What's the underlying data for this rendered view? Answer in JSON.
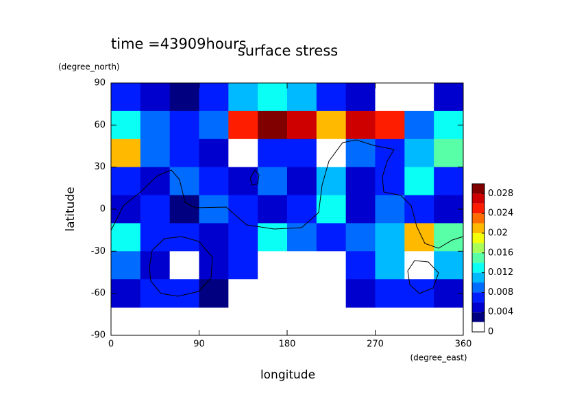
{
  "chart_data": {
    "type": "contour",
    "title": "surface stress",
    "subtitle": "time =43909hours",
    "x_label": "longitude",
    "x_unit": "(degree_east)",
    "y_label": "latitude",
    "y_unit": "(degree_north)",
    "x": [
      15,
      45,
      75,
      105,
      135,
      165,
      195,
      225,
      255,
      285,
      315,
      345
    ],
    "y": [
      80,
      60,
      40,
      20,
      0,
      -20,
      -40,
      -60
    ],
    "z": [
      [
        0.006,
        0.004,
        0.003,
        0.006,
        0.01,
        0.012,
        0.01,
        0.006,
        0.004,
        0.001,
        0.001,
        0.004
      ],
      [
        0.012,
        0.008,
        0.006,
        0.008,
        0.024,
        0.028,
        0.026,
        0.02,
        0.026,
        0.024,
        0.008,
        0.012
      ],
      [
        0.02,
        0.008,
        0.006,
        0.004,
        0.001,
        0.006,
        0.006,
        0.001,
        0.008,
        0.006,
        0.01,
        0.014
      ],
      [
        0.006,
        0.004,
        0.008,
        0.006,
        0.004,
        0.008,
        0.004,
        0.01,
        0.004,
        0.006,
        0.012,
        0.006
      ],
      [
        0.004,
        0.006,
        0.003,
        0.008,
        0.006,
        0.004,
        0.006,
        0.012,
        0.004,
        0.008,
        0.006,
        0.004
      ],
      [
        0.012,
        0.006,
        0.006,
        0.004,
        0.006,
        0.012,
        0.008,
        0.006,
        0.008,
        0.01,
        0.02,
        0.014
      ],
      [
        0.008,
        0.004,
        0.001,
        0.004,
        0.006,
        0.001,
        0.001,
        0.001,
        0.006,
        0.01,
        0.001,
        0.01
      ],
      [
        0.004,
        0.006,
        0.006,
        0.003,
        0.001,
        0.001,
        0.001,
        0.001,
        0.004,
        0.006,
        0.006,
        0.004
      ]
    ],
    "xlim": [
      0,
      360
    ],
    "ylim": [
      -90,
      90
    ],
    "xticks": [
      0,
      90,
      180,
      270,
      360
    ],
    "yticks": [
      -90,
      -60,
      -30,
      0,
      30,
      60,
      90
    ],
    "levels": [
      0,
      0.002,
      0.004,
      0.006,
      0.008,
      0.01,
      0.012,
      0.014,
      0.016,
      0.018,
      0.02,
      0.022,
      0.024,
      0.026,
      0.028,
      0.03
    ],
    "colorbar_ticks": [
      0,
      0.004,
      0.008,
      0.012,
      0.016,
      0.02,
      0.024,
      0.028
    ]
  }
}
